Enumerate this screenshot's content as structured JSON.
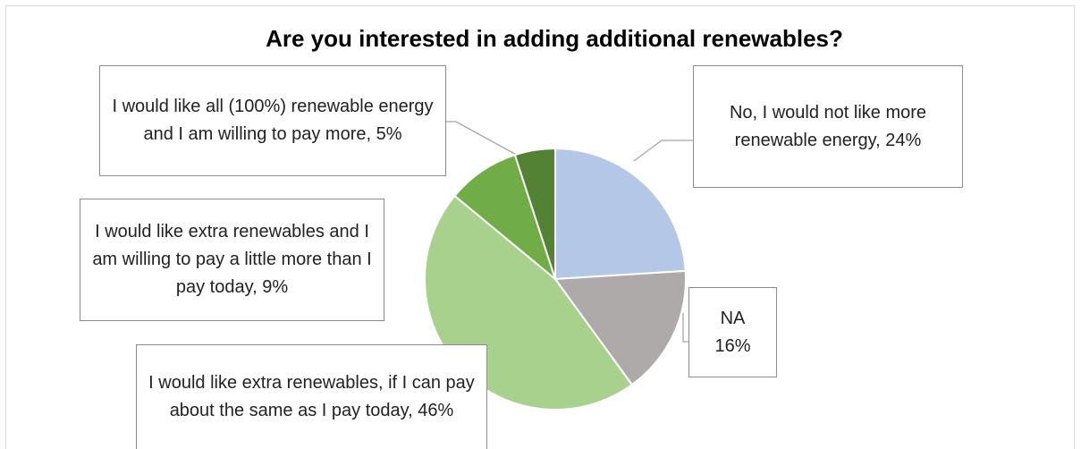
{
  "chart_data": {
    "type": "pie",
    "title": "Are you interested in adding additional renewables?",
    "slices": [
      {
        "label": "No, I would not like more renewable energy, 24%",
        "value": 24,
        "color": "#b4c7e7"
      },
      {
        "label": "NA\n16%",
        "value": 16,
        "color": "#aeaaaa"
      },
      {
        "label": "I would like extra renewables, if I can pay about the same as I pay today, 46%",
        "value": 46,
        "color": "#a9d18e"
      },
      {
        "label": "I would like extra renewables and I am willing to pay a little more than I pay today, 9%",
        "value": 9,
        "color": "#70ad47"
      },
      {
        "label": "I would like all (100%) renewable energy and I am willing to pay more, 5%",
        "value": 5,
        "color": "#548235"
      }
    ]
  }
}
